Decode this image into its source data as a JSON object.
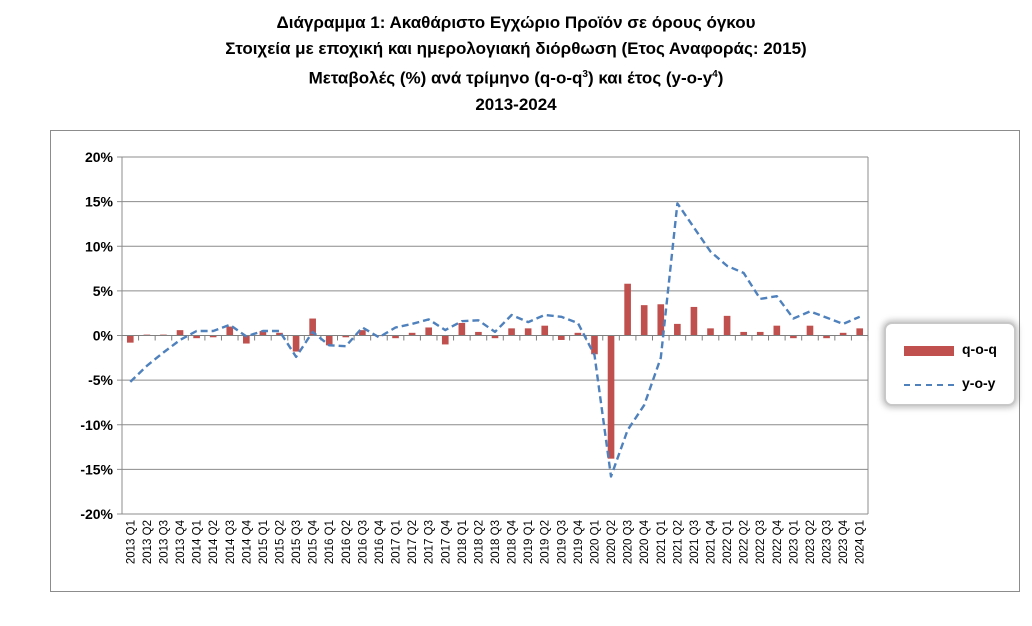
{
  "title": {
    "line1": "Διάγραμμα 1: Ακαθάριστο Εγχώριο Προϊόν σε όρους όγκου",
    "line2": "Στοιχεία με εποχική και ημερολογιακή διόρθωση (Ετος Αναφοράς: 2015)",
    "line3_pre": "Μεταβολές (%) ανά τρίμηνο (q-o-q",
    "line3_sup1": "3",
    "line3_mid": ") και έτος (y-o-y",
    "line3_sup2": "4",
    "line3_post": ")",
    "line4": "2013-2024"
  },
  "colors": {
    "bar": "#C0504D",
    "line": "#4F81BD",
    "grid": "#8c8c8c"
  },
  "chart_data": {
    "type": "bar",
    "categories": [
      "2013 Q1",
      "2013 Q2",
      "2013 Q3",
      "2013 Q4",
      "2014 Q1",
      "2014 Q2",
      "2014 Q3",
      "2014 Q4",
      "2015 Q1",
      "2015 Q2",
      "2015 Q3",
      "2015 Q4",
      "2016 Q1",
      "2016 Q2",
      "2016 Q3",
      "2016 Q4",
      "2017 Q1",
      "2017 Q2",
      "2017 Q3",
      "2017 Q4",
      "2018 Q1",
      "2018 Q2",
      "2018 Q3",
      "2018 Q4",
      "2019 Q1",
      "2019 Q2",
      "2019 Q3",
      "2019 Q4",
      "2020 Q1",
      "2020 Q2",
      "2020 Q3",
      "2020 Q4",
      "2021 Q1",
      "2021 Q2",
      "2021 Q3",
      "2021 Q4",
      "2022 Q1",
      "2022 Q2",
      "2022 Q3",
      "2022 Q4",
      "2023 Q1",
      "2023 Q2",
      "2023 Q3",
      "2023 Q4",
      "2024 Q1"
    ],
    "series": [
      {
        "name": "q-o-q",
        "type": "bar",
        "values": [
          -0.8,
          0.1,
          0.1,
          0.6,
          -0.3,
          -0.2,
          1.0,
          -0.9,
          0.5,
          0.3,
          -1.8,
          1.9,
          -1.1,
          -0.2,
          0.6,
          0.0,
          -0.3,
          0.3,
          0.9,
          -1.0,
          1.4,
          0.4,
          -0.3,
          0.8,
          0.8,
          1.1,
          -0.5,
          0.3,
          -2.1,
          -13.8,
          5.8,
          3.4,
          3.5,
          1.3,
          3.2,
          0.8,
          2.2,
          0.4,
          0.4,
          1.1,
          -0.3,
          1.1,
          -0.3,
          0.3,
          0.8
        ]
      },
      {
        "name": "y-o-y",
        "type": "line",
        "values": [
          -5.2,
          -3.4,
          -1.9,
          -0.5,
          0.5,
          0.5,
          1.2,
          -0.1,
          0.5,
          0.5,
          -2.4,
          0.4,
          -1.1,
          -1.2,
          0.9,
          -0.2,
          0.9,
          1.3,
          1.8,
          0.6,
          1.6,
          1.7,
          0.4,
          2.3,
          1.5,
          2.3,
          2.1,
          1.4,
          -2.2,
          -15.8,
          -10.6,
          -7.8,
          -2.5,
          14.8,
          12.1,
          9.4,
          7.8,
          7.0,
          4.1,
          4.4,
          1.9,
          2.7,
          2.0,
          1.3,
          2.1
        ]
      }
    ],
    "yaxis": {
      "min": -20,
      "max": 20,
      "step": 5,
      "tick_labels": [
        "20%",
        "15%",
        "10%",
        "5%",
        "0%",
        "-5%",
        "-10%",
        "-15%",
        "-20%"
      ]
    },
    "grid": true,
    "legend": "right"
  }
}
